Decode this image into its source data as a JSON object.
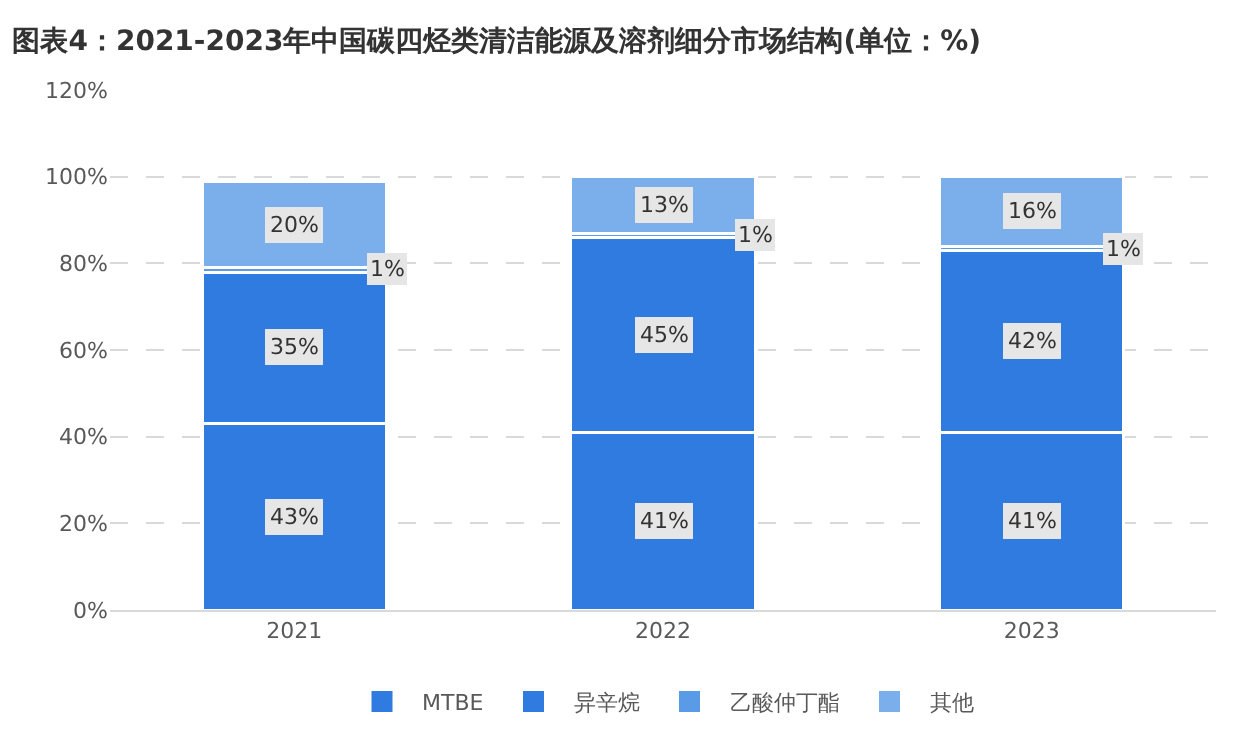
{
  "chart_data": {
    "type": "bar",
    "title": "图表4：2021-2023年中国碳四烃类清洁能源及溶剂细分市场结构(单位：%)",
    "categories": [
      "2021",
      "2022",
      "2023"
    ],
    "stacked": true,
    "series": [
      {
        "name": "MTBE",
        "color": "#2f7be0",
        "values": [
          43,
          41,
          41
        ],
        "value_labels": [
          "43%",
          "41%",
          "41%"
        ]
      },
      {
        "name": "异辛烷",
        "color": "#2f7be0",
        "values": [
          35,
          45,
          42
        ],
        "value_labels": [
          "35%",
          "45%",
          "42%"
        ]
      },
      {
        "name": "乙酸仲丁酯",
        "color": "#5a9be8",
        "values": [
          1,
          1,
          1
        ],
        "value_labels": [
          "1%",
          "1%",
          "1%"
        ]
      },
      {
        "name": "其他",
        "color": "#7aafec",
        "values": [
          20,
          13,
          16
        ],
        "value_labels": [
          "20%",
          "13%",
          "16%"
        ]
      }
    ],
    "ylim": [
      0,
      120
    ],
    "yticks": [
      {
        "value": 0,
        "label": "0%"
      },
      {
        "value": 20,
        "label": "20%"
      },
      {
        "value": 40,
        "label": "40%"
      },
      {
        "value": 60,
        "label": "60%"
      },
      {
        "value": 80,
        "label": "80%"
      },
      {
        "value": 100,
        "label": "100%"
      },
      {
        "value": 120,
        "label": "120%"
      }
    ],
    "grid": "y",
    "legend": "bottom"
  }
}
